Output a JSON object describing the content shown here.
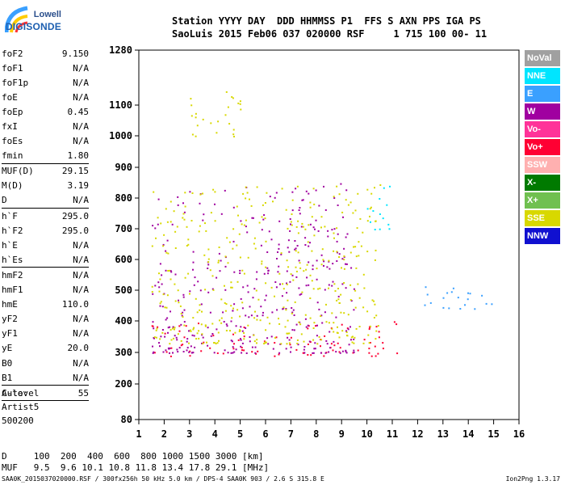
{
  "logo": {
    "line1": "Lowell",
    "line2": "DIGISONDE"
  },
  "header": {
    "line1": "Station YYYY DAY  DDD HHMMSS P1  FFS S AXN PPS IGA PS",
    "line2": "SaoLuis 2015 Feb06 037 020000 RSF     1 715 100 00- 11"
  },
  "params": [
    {
      "name": "foF2",
      "value": "9.150"
    },
    {
      "name": "foF1",
      "value": "N/A"
    },
    {
      "name": "foF1p",
      "value": "N/A"
    },
    {
      "name": "foE",
      "value": "N/A"
    },
    {
      "name": "foEp",
      "value": "0.45"
    },
    {
      "name": "fxI",
      "value": "N/A"
    },
    {
      "name": "foEs",
      "value": "N/A"
    },
    {
      "name": "fmin",
      "value": "1.80",
      "group_end": true
    },
    {
      "name": "MUF(D)",
      "value": "29.15"
    },
    {
      "name": "M(D)",
      "value": "3.19"
    },
    {
      "name": "D",
      "value": "N/A",
      "group_end": true
    },
    {
      "name": "h`F",
      "value": "295.0"
    },
    {
      "name": "h`F2",
      "value": "295.0"
    },
    {
      "name": "h`E",
      "value": "N/A"
    },
    {
      "name": "h`Es",
      "value": "N/A",
      "group_end": true
    },
    {
      "name": "hmF2",
      "value": "N/A"
    },
    {
      "name": "hmF1",
      "value": "N/A"
    },
    {
      "name": "hmE",
      "value": "110.0"
    },
    {
      "name": "yF2",
      "value": "N/A"
    },
    {
      "name": "yF1",
      "value": "N/A"
    },
    {
      "name": "yE",
      "value": "20.0"
    },
    {
      "name": "B0",
      "value": "N/A"
    },
    {
      "name": "B1",
      "value": "N/A",
      "group_end": true
    },
    {
      "name": "C-level",
      "value": "55",
      "group_end": true
    }
  ],
  "auto": {
    "line1": "Auto:",
    "line2": "Artist5",
    "line3": "500200"
  },
  "legend": [
    {
      "label": "NoVal",
      "bg": "#a0a0a0",
      "fg": "#ffffff"
    },
    {
      "label": "NNE",
      "bg": "#00e5ff",
      "fg": "#ffffff"
    },
    {
      "label": "E",
      "bg": "#3aa0ff",
      "fg": "#ffffff"
    },
    {
      "label": "W",
      "bg": "#a000a0",
      "fg": "#ffffff"
    },
    {
      "label": "Vo-",
      "bg": "#ff3399",
      "fg": "#ffffff"
    },
    {
      "label": "Vo+",
      "bg": "#ff0033",
      "fg": "#ffffff"
    },
    {
      "label": "SSW",
      "bg": "#ffb0b0",
      "fg": "#ffffff"
    },
    {
      "label": "X-",
      "bg": "#007a00",
      "fg": "#ffffff"
    },
    {
      "label": "X+",
      "bg": "#70c050",
      "fg": "#ffffff"
    },
    {
      "label": "SSE",
      "bg": "#d8d800",
      "fg": "#ffffff"
    },
    {
      "label": "NNW",
      "bg": "#1010d0",
      "fg": "#ffffff"
    }
  ],
  "footer": {
    "d_line": "D     100  200  400  600  800 1000 1500 3000 [km]",
    "muf_line": "MUF   9.5  9.6 10.1 10.8 11.8 13.4 17.8 29.1 [MHz]",
    "info_line": "SAA0K_2015037020000.RSF / 300fx256h 50 kHz 5.0 km / DPS-4 SAA0K 903 / 2.6 S 315.8 E",
    "version": "Ion2Png 1.3.17"
  },
  "chart_data": {
    "type": "scatter",
    "x_ticks": [
      1,
      2,
      3,
      4,
      5,
      6,
      7,
      8,
      9,
      10,
      11,
      12,
      13,
      14,
      15,
      16
    ],
    "y_ticks": [
      80,
      200,
      300,
      400,
      500,
      600,
      700,
      800,
      900,
      1000,
      1100,
      1280
    ],
    "xlim": [
      1,
      16
    ],
    "ylim": [
      80,
      1280
    ],
    "y_scale": "nonlinear (ionogram virtual height)",
    "grid": false,
    "trace_description": [
      {
        "mode": "Vo+",
        "band": "F-region trace",
        "x_range": [
          1.5,
          11.2
        ],
        "y_range": [
          290,
          400
        ]
      },
      {
        "mode": "W",
        "band": "F-region trace",
        "x_range": [
          1.5,
          9.5
        ],
        "y_range": [
          300,
          850
        ]
      },
      {
        "mode": "SSE",
        "band": "oblique echoes",
        "x_range": [
          1.5,
          10.5
        ],
        "y_range": [
          330,
          850
        ]
      },
      {
        "mode": "SSE",
        "band": "upper oblique",
        "x_range": [
          3.0,
          5.0
        ],
        "y_range": [
          1000,
          1150
        ]
      },
      {
        "mode": "E",
        "band": "spread",
        "x_range": [
          12.0,
          15.0
        ],
        "y_range": [
          440,
          520
        ]
      },
      {
        "mode": "NNE",
        "band": "spread",
        "x_range": [
          10.0,
          11.0
        ],
        "y_range": [
          700,
          850
        ]
      }
    ]
  }
}
